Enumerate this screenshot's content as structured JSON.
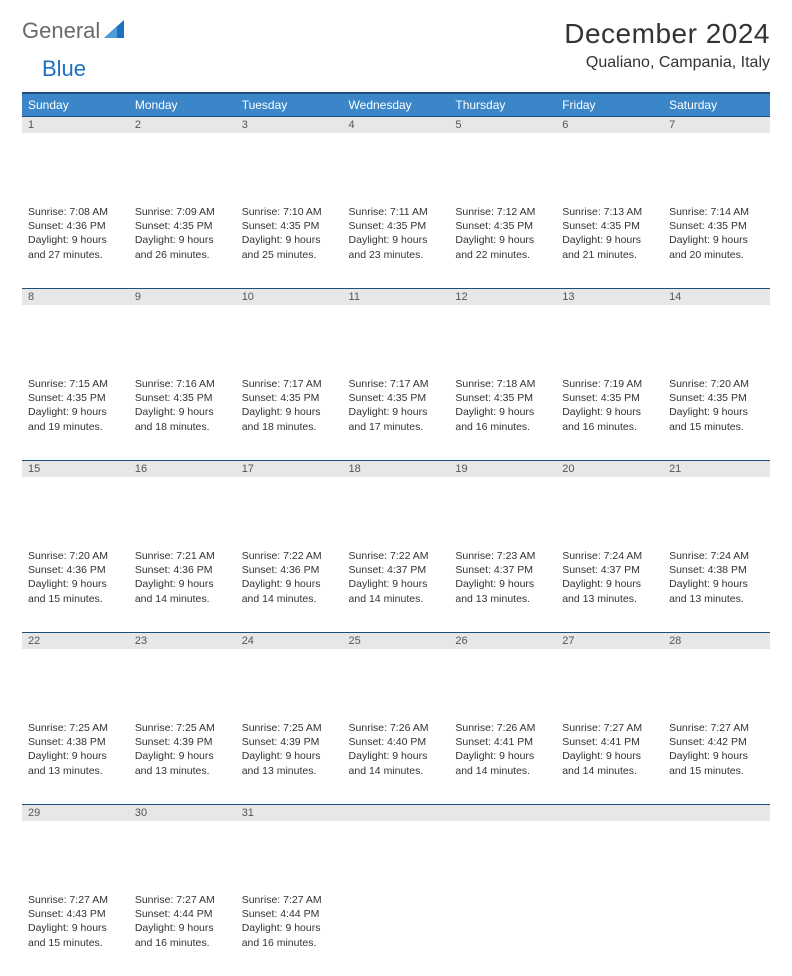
{
  "logo": {
    "word1": "General",
    "word2": "Blue"
  },
  "title": "December 2024",
  "location": "Qualiano, Campania, Italy",
  "colors": {
    "header_bg": "#3a86c8",
    "header_border": "#1e4f7a",
    "daynum_bg": "#e7e7e7",
    "logo_gray": "#6a6a6a",
    "logo_blue": "#1e6fbf"
  },
  "weekdays": [
    "Sunday",
    "Monday",
    "Tuesday",
    "Wednesday",
    "Thursday",
    "Friday",
    "Saturday"
  ],
  "weeks": [
    [
      {
        "n": "1",
        "sr": "7:08 AM",
        "ss": "4:36 PM",
        "dl": "9 hours and 27 minutes."
      },
      {
        "n": "2",
        "sr": "7:09 AM",
        "ss": "4:35 PM",
        "dl": "9 hours and 26 minutes."
      },
      {
        "n": "3",
        "sr": "7:10 AM",
        "ss": "4:35 PM",
        "dl": "9 hours and 25 minutes."
      },
      {
        "n": "4",
        "sr": "7:11 AM",
        "ss": "4:35 PM",
        "dl": "9 hours and 23 minutes."
      },
      {
        "n": "5",
        "sr": "7:12 AM",
        "ss": "4:35 PM",
        "dl": "9 hours and 22 minutes."
      },
      {
        "n": "6",
        "sr": "7:13 AM",
        "ss": "4:35 PM",
        "dl": "9 hours and 21 minutes."
      },
      {
        "n": "7",
        "sr": "7:14 AM",
        "ss": "4:35 PM",
        "dl": "9 hours and 20 minutes."
      }
    ],
    [
      {
        "n": "8",
        "sr": "7:15 AM",
        "ss": "4:35 PM",
        "dl": "9 hours and 19 minutes."
      },
      {
        "n": "9",
        "sr": "7:16 AM",
        "ss": "4:35 PM",
        "dl": "9 hours and 18 minutes."
      },
      {
        "n": "10",
        "sr": "7:17 AM",
        "ss": "4:35 PM",
        "dl": "9 hours and 18 minutes."
      },
      {
        "n": "11",
        "sr": "7:17 AM",
        "ss": "4:35 PM",
        "dl": "9 hours and 17 minutes."
      },
      {
        "n": "12",
        "sr": "7:18 AM",
        "ss": "4:35 PM",
        "dl": "9 hours and 16 minutes."
      },
      {
        "n": "13",
        "sr": "7:19 AM",
        "ss": "4:35 PM",
        "dl": "9 hours and 16 minutes."
      },
      {
        "n": "14",
        "sr": "7:20 AM",
        "ss": "4:35 PM",
        "dl": "9 hours and 15 minutes."
      }
    ],
    [
      {
        "n": "15",
        "sr": "7:20 AM",
        "ss": "4:36 PM",
        "dl": "9 hours and 15 minutes."
      },
      {
        "n": "16",
        "sr": "7:21 AM",
        "ss": "4:36 PM",
        "dl": "9 hours and 14 minutes."
      },
      {
        "n": "17",
        "sr": "7:22 AM",
        "ss": "4:36 PM",
        "dl": "9 hours and 14 minutes."
      },
      {
        "n": "18",
        "sr": "7:22 AM",
        "ss": "4:37 PM",
        "dl": "9 hours and 14 minutes."
      },
      {
        "n": "19",
        "sr": "7:23 AM",
        "ss": "4:37 PM",
        "dl": "9 hours and 13 minutes."
      },
      {
        "n": "20",
        "sr": "7:24 AM",
        "ss": "4:37 PM",
        "dl": "9 hours and 13 minutes."
      },
      {
        "n": "21",
        "sr": "7:24 AM",
        "ss": "4:38 PM",
        "dl": "9 hours and 13 minutes."
      }
    ],
    [
      {
        "n": "22",
        "sr": "7:25 AM",
        "ss": "4:38 PM",
        "dl": "9 hours and 13 minutes."
      },
      {
        "n": "23",
        "sr": "7:25 AM",
        "ss": "4:39 PM",
        "dl": "9 hours and 13 minutes."
      },
      {
        "n": "24",
        "sr": "7:25 AM",
        "ss": "4:39 PM",
        "dl": "9 hours and 13 minutes."
      },
      {
        "n": "25",
        "sr": "7:26 AM",
        "ss": "4:40 PM",
        "dl": "9 hours and 14 minutes."
      },
      {
        "n": "26",
        "sr": "7:26 AM",
        "ss": "4:41 PM",
        "dl": "9 hours and 14 minutes."
      },
      {
        "n": "27",
        "sr": "7:27 AM",
        "ss": "4:41 PM",
        "dl": "9 hours and 14 minutes."
      },
      {
        "n": "28",
        "sr": "7:27 AM",
        "ss": "4:42 PM",
        "dl": "9 hours and 15 minutes."
      }
    ],
    [
      {
        "n": "29",
        "sr": "7:27 AM",
        "ss": "4:43 PM",
        "dl": "9 hours and 15 minutes."
      },
      {
        "n": "30",
        "sr": "7:27 AM",
        "ss": "4:44 PM",
        "dl": "9 hours and 16 minutes."
      },
      {
        "n": "31",
        "sr": "7:27 AM",
        "ss": "4:44 PM",
        "dl": "9 hours and 16 minutes."
      },
      null,
      null,
      null,
      null
    ]
  ],
  "labels": {
    "sunrise": "Sunrise:",
    "sunset": "Sunset:",
    "daylight": "Daylight:"
  }
}
